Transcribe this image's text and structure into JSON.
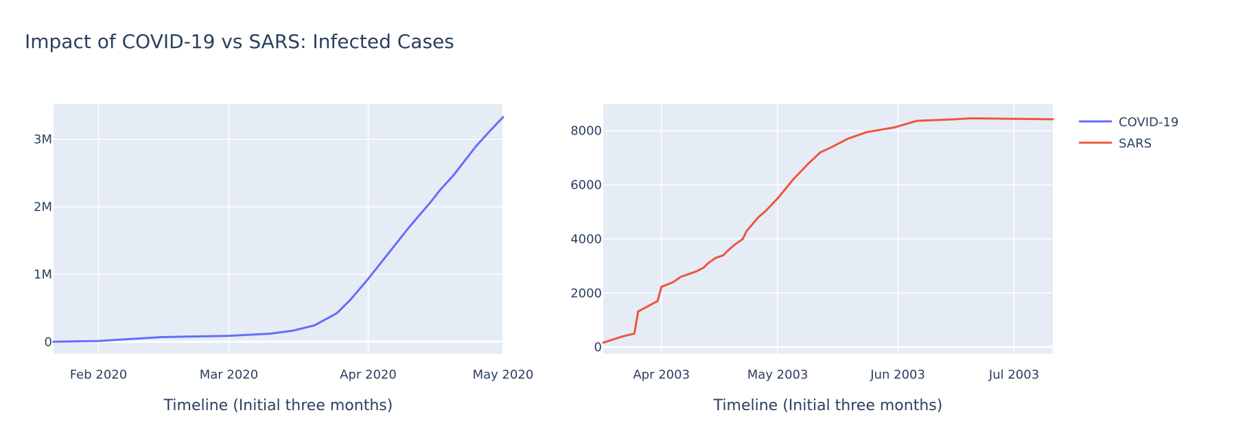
{
  "title": "Impact of COVID-19 vs SARS: Infected Cases",
  "legend": [
    {
      "name": "COVID-19",
      "color": "#636efa"
    },
    {
      "name": "SARS",
      "color": "#ef553b"
    }
  ],
  "chart_data": [
    {
      "type": "line",
      "series": [
        {
          "name": "COVID-19",
          "color": "#636efa"
        }
      ],
      "x": [
        "2020-01-22",
        "2020-02-01",
        "2020-02-15",
        "2020-03-01",
        "2020-03-10",
        "2020-03-15",
        "2020-03-20",
        "2020-03-25",
        "2020-03-28",
        "2020-04-01",
        "2020-04-05",
        "2020-04-10",
        "2020-04-15",
        "2020-04-17",
        "2020-04-20",
        "2020-04-25",
        "2020-04-28",
        "2020-05-01"
      ],
      "y": [
        0,
        12000,
        69000,
        88000,
        119000,
        162000,
        242000,
        422000,
        620000,
        932000,
        1270000,
        1690000,
        2080000,
        2250000,
        2470000,
        2900000,
        3120000,
        3330000
      ],
      "xlabel": "Timeline (Initial three months)",
      "xlim": [
        "2020-01-22",
        "2020-05-01"
      ],
      "ylim": [
        -180000,
        3520000
      ],
      "x_ticks": [
        {
          "value": "2020-02-01",
          "label": "Feb 2020"
        },
        {
          "value": "2020-03-01",
          "label": "Mar 2020"
        },
        {
          "value": "2020-04-01",
          "label": "Apr 2020"
        },
        {
          "value": "2020-05-01",
          "label": "May 2020"
        }
      ],
      "y_ticks": [
        {
          "value": 0,
          "label": "0"
        },
        {
          "value": 1000000,
          "label": "1M"
        },
        {
          "value": 2000000,
          "label": "2M"
        },
        {
          "value": 3000000,
          "label": "3M"
        }
      ],
      "grid": true
    },
    {
      "type": "line",
      "series": [
        {
          "name": "SARS",
          "color": "#ef553b"
        }
      ],
      "x": [
        "2003-03-17",
        "2003-03-22",
        "2003-03-25",
        "2003-03-26",
        "2003-03-29",
        "2003-03-30",
        "2003-03-31",
        "2003-04-01",
        "2003-04-04",
        "2003-04-06",
        "2003-04-08",
        "2003-04-10",
        "2003-04-12",
        "2003-04-13",
        "2003-04-15",
        "2003-04-17",
        "2003-04-18",
        "2003-04-20",
        "2003-04-22",
        "2003-04-23",
        "2003-04-26",
        "2003-04-28",
        "2003-05-01",
        "2003-05-05",
        "2003-05-09",
        "2003-05-12",
        "2003-05-15",
        "2003-05-17",
        "2003-05-19",
        "2003-05-22",
        "2003-05-24",
        "2003-05-31",
        "2003-06-06",
        "2003-06-15",
        "2003-06-20",
        "2003-07-01",
        "2003-07-11"
      ],
      "y": [
        167,
        400,
        500,
        1320,
        1550,
        1630,
        1700,
        2230,
        2400,
        2600,
        2700,
        2800,
        2950,
        3100,
        3300,
        3400,
        3550,
        3800,
        4000,
        4300,
        4800,
        5050,
        5500,
        6200,
        6800,
        7200,
        7400,
        7550,
        7700,
        7850,
        7950,
        8120,
        8370,
        8420,
        8460,
        8440,
        8425
      ],
      "xlabel": "Timeline (Initial three months)",
      "xlim": [
        "2003-03-17",
        "2003-07-11"
      ],
      "ylim": [
        -250,
        8980
      ],
      "x_ticks": [
        {
          "value": "2003-04-01",
          "label": "Apr 2003"
        },
        {
          "value": "2003-05-01",
          "label": "May 2003"
        },
        {
          "value": "2003-06-01",
          "label": "Jun 2003"
        },
        {
          "value": "2003-07-01",
          "label": "Jul 2003"
        }
      ],
      "y_ticks": [
        {
          "value": 0,
          "label": "0"
        },
        {
          "value": 2000,
          "label": "2000"
        },
        {
          "value": 4000,
          "label": "4000"
        },
        {
          "value": 6000,
          "label": "6000"
        },
        {
          "value": 8000,
          "label": "8000"
        }
      ],
      "grid": true
    }
  ]
}
